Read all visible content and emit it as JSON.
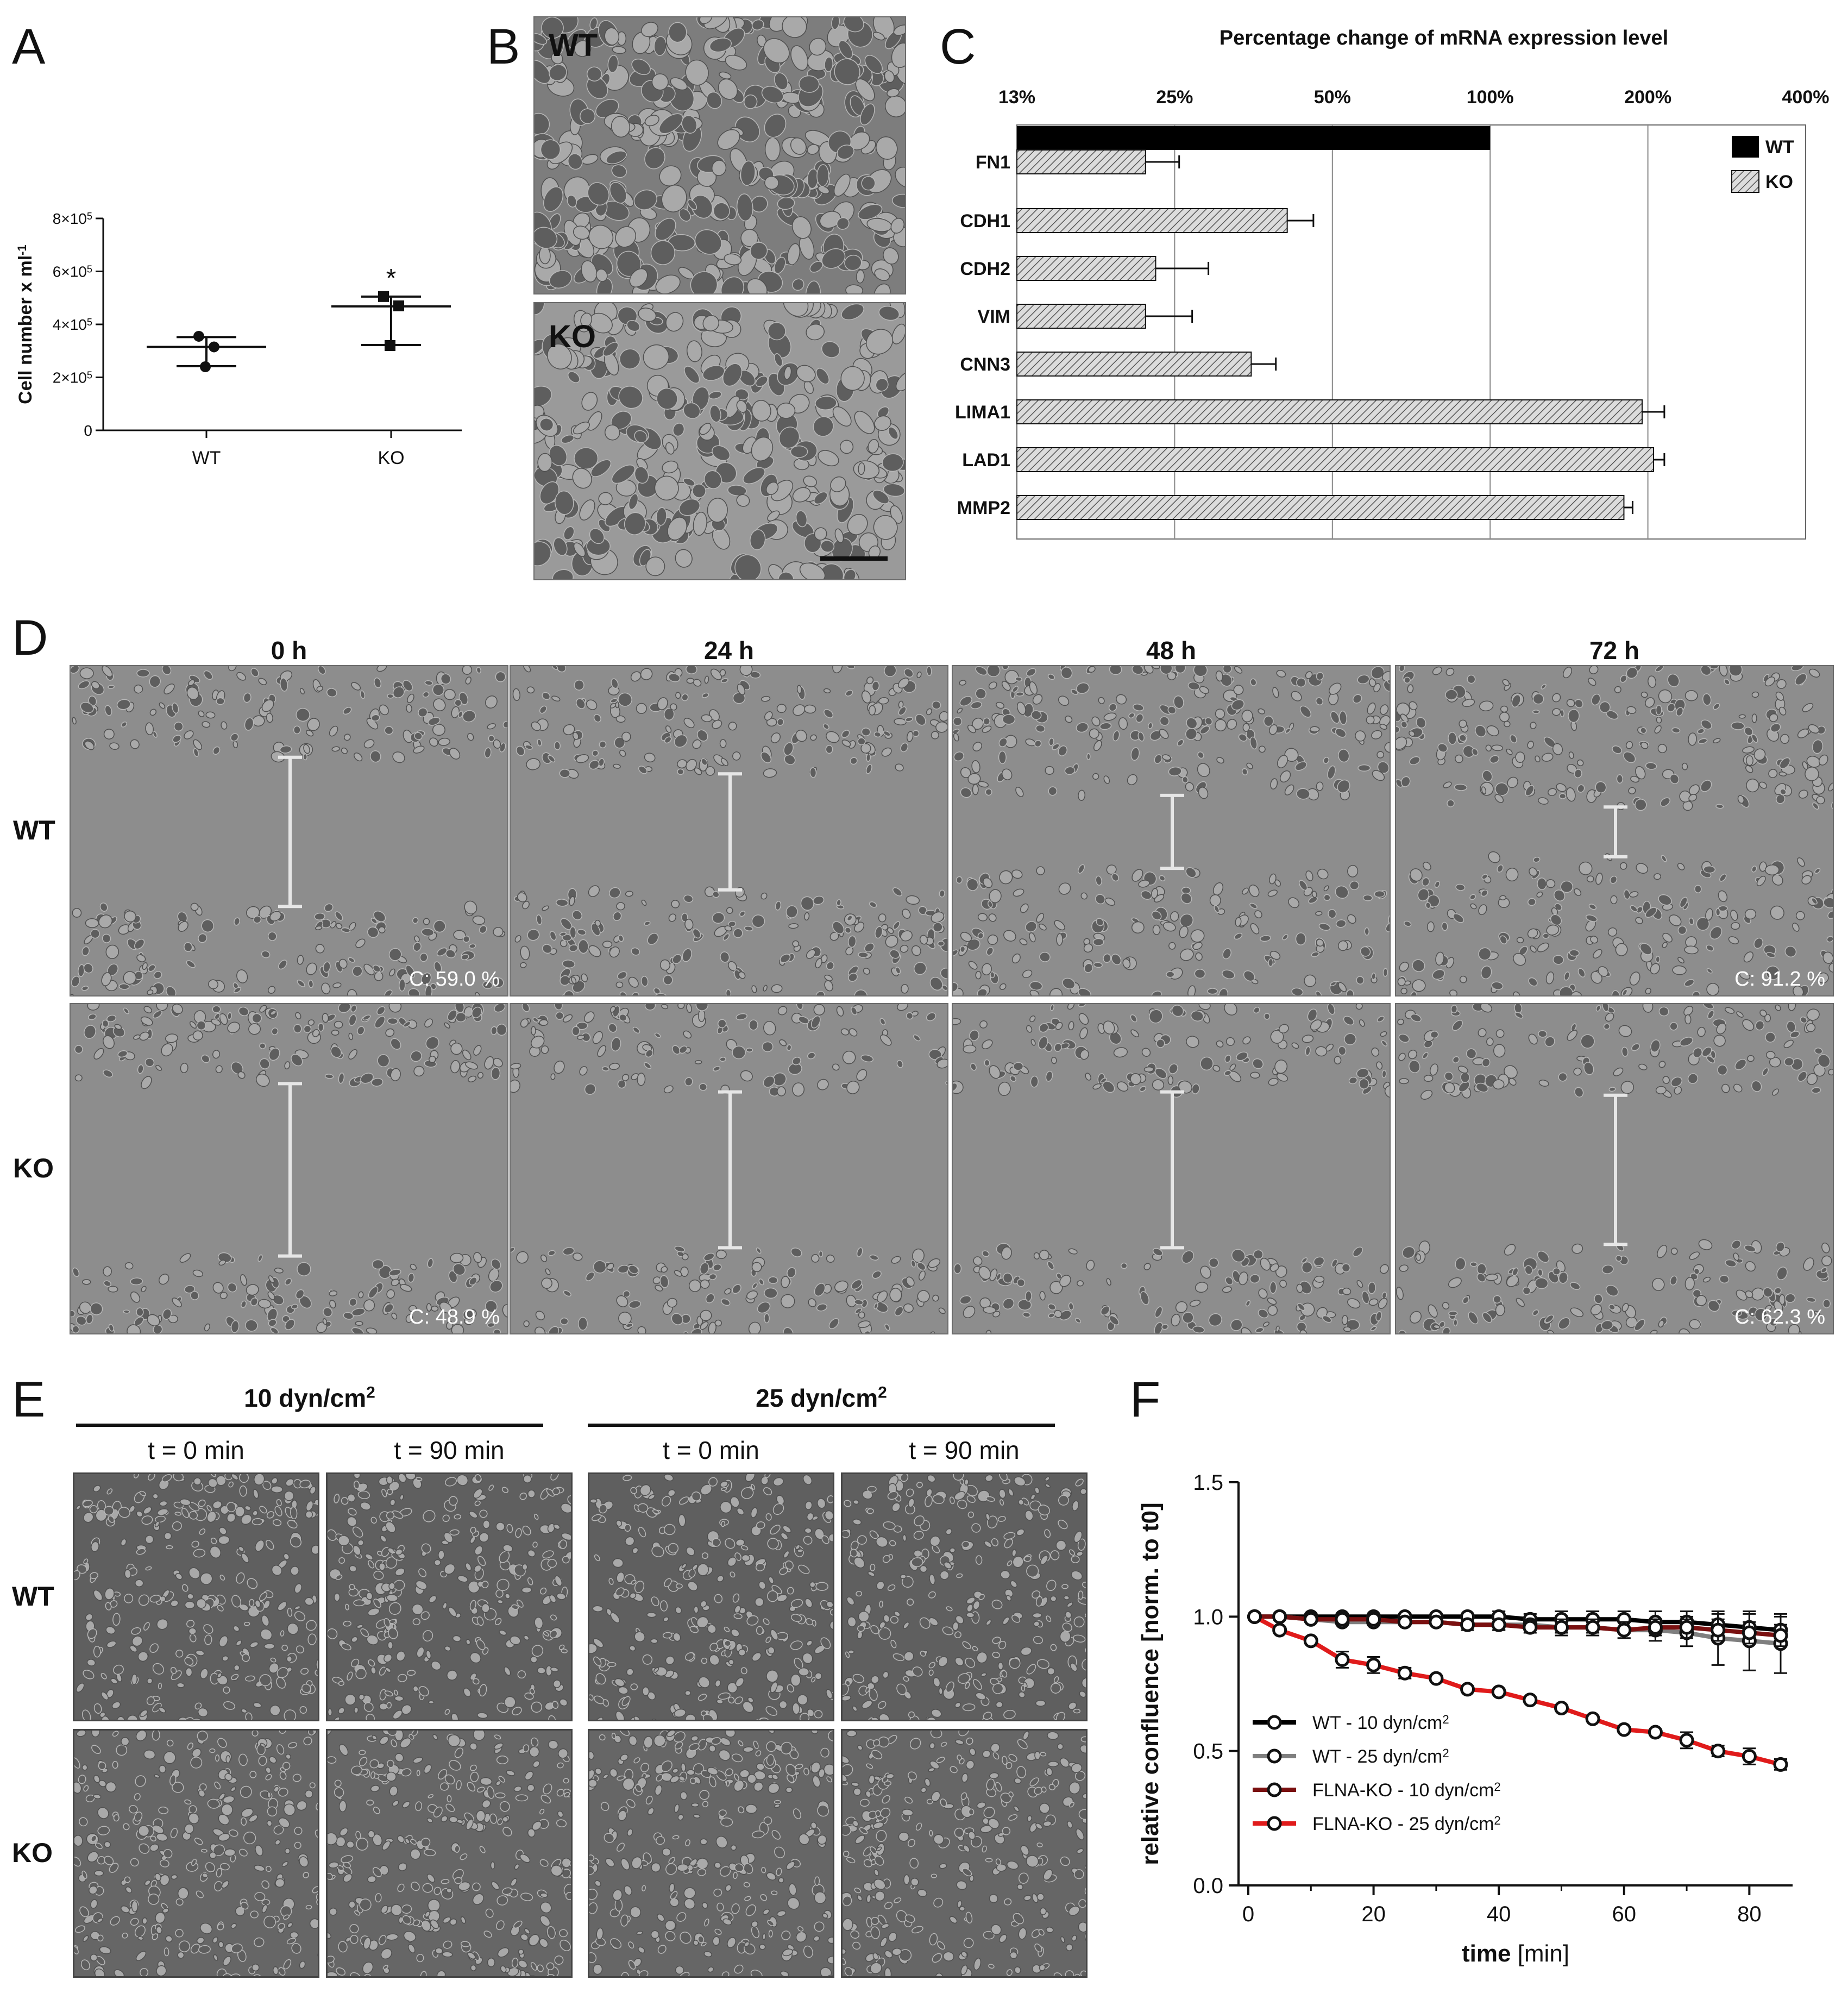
{
  "panels": {
    "A": "A",
    "B": "B",
    "C": "C",
    "D": "D",
    "E": "E",
    "F": "F"
  },
  "colors": {
    "wt_black": "#000000",
    "wt_grey": "#7f7f7f",
    "ko_darkred": "#7a1010",
    "ko_red": "#e01b1b",
    "micro_bg": "#8c8c8c"
  },
  "panel_a": {
    "chart_data": {
      "type": "scatter",
      "ylabel": "Cell number x ml",
      "ylabel_sup": "-1",
      "categories": [
        "WT",
        "KO"
      ],
      "yticks": [
        {
          "value": 0,
          "label": "0",
          "sup": ""
        },
        {
          "value": 200000,
          "label": "2×10",
          "sup": "5"
        },
        {
          "value": 400000,
          "label": "4×10",
          "sup": "5"
        },
        {
          "value": 600000,
          "label": "6×10",
          "sup": "5"
        },
        {
          "value": 800000,
          "label": "8×10",
          "sup": "5"
        }
      ],
      "ylim": [
        0,
        800000
      ],
      "series": [
        {
          "category": "WT",
          "marker": "circle",
          "points": [
            355000,
            315000,
            240000
          ],
          "mean": 315000,
          "error_top": 352000,
          "error_bottom": 242000
        },
        {
          "category": "KO",
          "marker": "square",
          "points": [
            505000,
            470000,
            320000
          ],
          "mean": 468000,
          "error_top": 505000,
          "error_bottom": 322000
        }
      ],
      "significance": {
        "category": "KO",
        "label": "*"
      }
    }
  },
  "panel_b": {
    "top_label": "WT",
    "bottom_label": "KO"
  },
  "panel_c": {
    "chart_data": {
      "type": "bar",
      "orientation": "horizontal",
      "title": "Percentage change of mRNA expression level",
      "scale": "log2",
      "xticks": [
        "13%",
        "25%",
        "50%",
        "100%",
        "200%",
        "400%"
      ],
      "xtick_values": [
        12.5,
        25,
        50,
        100,
        200,
        400
      ],
      "xlim": [
        12.5,
        400
      ],
      "legend": [
        {
          "name": "WT",
          "pattern": "solid"
        },
        {
          "name": "KO",
          "pattern": "hatched"
        }
      ],
      "legend_position": "top-right",
      "wt_bar": {
        "gene": "FN1",
        "value": 100
      },
      "categories": [
        "FN1",
        "CDH1",
        "CDH2",
        "VIM",
        "CNN3",
        "LIMA1",
        "LAD1",
        "MMP2"
      ],
      "ko_values": [
        22,
        41,
        23,
        22,
        35,
        195,
        205,
        180
      ],
      "ko_error_high": [
        25.5,
        46,
        29,
        27,
        39,
        215,
        215,
        187
      ]
    }
  },
  "panel_d": {
    "columns": [
      "0 h",
      "24 h",
      "48 h",
      "72 h"
    ],
    "rows": [
      "WT",
      "KO"
    ],
    "captions": [
      [
        "C: 59.0 %",
        "",
        "",
        "C: 91.2 %"
      ],
      [
        "C: 48.9 %",
        "",
        "",
        "C: 62.3 %"
      ]
    ],
    "gap_fraction": [
      [
        0.45,
        0.35,
        0.22,
        0.15
      ],
      [
        0.52,
        0.47,
        0.47,
        0.45
      ]
    ]
  },
  "panel_e": {
    "groups": [
      {
        "label": "10 dyn/cm",
        "sup": "2"
      },
      {
        "label": "25 dyn/cm",
        "sup": "2"
      }
    ],
    "times": [
      "t = 0 min",
      "t = 90 min",
      "t = 0 min",
      "t = 90 min"
    ],
    "rows": [
      "WT",
      "KO"
    ]
  },
  "panel_f": {
    "chart_data": {
      "type": "line",
      "xlabel_bold": "time",
      "xlabel_rest": " [min]",
      "ylabel": "relative confluence [norm. to t0]",
      "xlim": [
        0,
        85
      ],
      "ylim": [
        0,
        1.5
      ],
      "xticks": [
        "0",
        "20",
        "40",
        "60",
        "80"
      ],
      "xtick_values": [
        0,
        20,
        40,
        60,
        80
      ],
      "yticks": [
        "0.0",
        "0.5",
        "1.0",
        "1.5"
      ],
      "ytick_values": [
        0,
        0.5,
        1.0,
        1.5
      ],
      "x": [
        1,
        5,
        10,
        15,
        20,
        25,
        30,
        35,
        40,
        45,
        50,
        55,
        60,
        65,
        70,
        75,
        80,
        85
      ],
      "series": [
        {
          "name": "WT - 10 dyn/cm",
          "sup": "2",
          "color": "#000000",
          "values": [
            1.0,
            1.0,
            1.0,
            1.0,
            1.0,
            1.0,
            1.0,
            1.0,
            1.0,
            0.99,
            0.99,
            0.99,
            0.99,
            0.98,
            0.98,
            0.97,
            0.96,
            0.95
          ],
          "errors": [
            0,
            0,
            0,
            0.01,
            0.01,
            0.01,
            0.01,
            0.01,
            0.02,
            0.02,
            0.03,
            0.03,
            0.03,
            0.04,
            0.04,
            0.04,
            0.05,
            0.05
          ]
        },
        {
          "name": "WT - 25 dyn/cm",
          "sup": "2",
          "color": "#7f7f7f",
          "values": [
            1.0,
            1.0,
            0.99,
            0.98,
            0.98,
            0.98,
            0.98,
            0.97,
            0.97,
            0.97,
            0.96,
            0.96,
            0.95,
            0.95,
            0.94,
            0.92,
            0.91,
            0.9
          ],
          "errors": [
            0,
            0,
            0.01,
            0.01,
            0.01,
            0.01,
            0.01,
            0.02,
            0.02,
            0.02,
            0.03,
            0.03,
            0.03,
            0.04,
            0.05,
            0.1,
            0.11,
            0.11
          ]
        },
        {
          "name": "FLNA-KO - 10 dyn/cm",
          "sup": "2",
          "color": "#7a1010",
          "values": [
            1.0,
            1.0,
            0.99,
            0.99,
            0.99,
            0.98,
            0.98,
            0.97,
            0.97,
            0.96,
            0.96,
            0.96,
            0.95,
            0.96,
            0.96,
            0.95,
            0.94,
            0.93
          ],
          "errors": [
            0,
            0,
            0.01,
            0.01,
            0.01,
            0.01,
            0.01,
            0.01,
            0.02,
            0.02,
            0.02,
            0.02,
            0.03,
            0.03,
            0.04,
            0.04,
            0.04,
            0.04
          ]
        },
        {
          "name": "FLNA-KO - 25 dyn/cm",
          "sup": "2",
          "color": "#e01b1b",
          "values": [
            1.0,
            0.95,
            0.91,
            0.84,
            0.82,
            0.79,
            0.77,
            0.73,
            0.72,
            0.69,
            0.66,
            0.62,
            0.58,
            0.57,
            0.54,
            0.5,
            0.48,
            0.45
          ],
          "errors": [
            0,
            0.01,
            0.01,
            0.03,
            0.03,
            0.02,
            0.01,
            0.01,
            0.01,
            0.01,
            0.01,
            0.01,
            0.01,
            0.01,
            0.03,
            0.02,
            0.03,
            0.02
          ]
        }
      ],
      "legend_position": "bottom-left"
    }
  }
}
